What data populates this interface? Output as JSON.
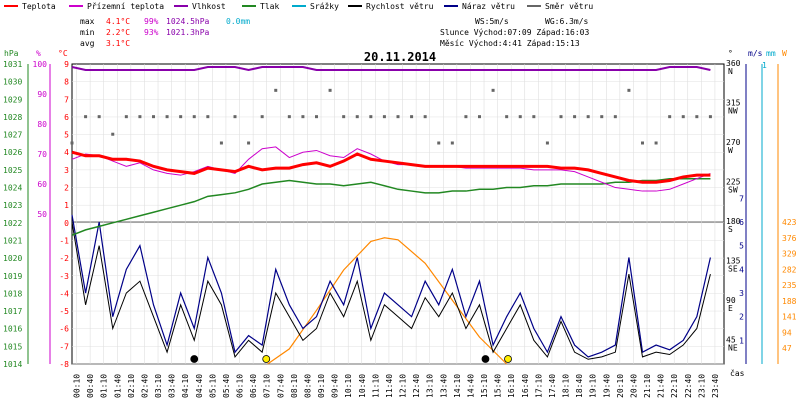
{
  "title": "20.11.2014",
  "legend": [
    {
      "label": "Teplota",
      "color": "#ff0000"
    },
    {
      "label": "Přízemní teplota",
      "color": "#cc00cc"
    },
    {
      "label": "Vlhkost",
      "color": "#8800aa"
    },
    {
      "label": "Tlak",
      "color": "#228822"
    },
    {
      "label": "Srážky",
      "color": "#00aacc"
    },
    {
      "label": "Rychlost větru",
      "color": "#000000"
    },
    {
      "label": "Náraz větru",
      "color": "#000088"
    },
    {
      "label": "Směr větru",
      "color": "#666666"
    }
  ],
  "stats": {
    "max": {
      "label": "max",
      "temp": "4.1°C",
      "hum": "99%",
      "press": "1024.5hPa",
      "rain": "0.0mm"
    },
    "min": {
      "label": "min",
      "temp": "2.2°C",
      "hum": "93%",
      "press": "1021.3hPa"
    },
    "avg": {
      "label": "avg",
      "temp": "3.1°C"
    }
  },
  "info": {
    "ws": "WS:5m/s",
    "wg": "WG:6.3m/s",
    "sun": "Slunce Východ:07:09  Západ:16:03",
    "moon": "Měsíc  Východ:4:41   Západ:15:13"
  },
  "axes": {
    "left_units": [
      "hPa",
      "%",
      "°C"
    ],
    "right_units": [
      "°",
      "m/s",
      "mm",
      "W"
    ],
    "xlabel": "čas",
    "pressure_ticks": [
      "1031",
      "1030",
      "1029",
      "1028",
      "1027",
      "1026",
      "1025",
      "1024",
      "1023",
      "1022",
      "1021",
      "1020",
      "1019",
      "1018",
      "1017",
      "1016",
      "1015",
      "1014"
    ],
    "humidity_ticks": [
      "100",
      "90",
      "80",
      "70",
      "60",
      "50"
    ],
    "temp_ticks": [
      "9",
      "8",
      "7",
      "6",
      "5",
      "4",
      "3",
      "2",
      "1",
      "0",
      "-1",
      "-2",
      "-3",
      "-4",
      "-5",
      "-6",
      "-7",
      "-8"
    ],
    "direction_ticks": [
      {
        "deg": "360",
        "dir": "N"
      },
      {
        "deg": "315",
        "dir": "NW"
      },
      {
        "deg": "270",
        "dir": "W"
      },
      {
        "deg": "225",
        "dir": "SW"
      },
      {
        "deg": "180",
        "dir": "S"
      },
      {
        "deg": "135",
        "dir": "SE"
      },
      {
        "deg": "90",
        "dir": "E"
      },
      {
        "deg": "45",
        "dir": "NE"
      }
    ],
    "wind_ticks": [
      "7",
      "6",
      "5",
      "4",
      "3",
      "2",
      "1"
    ],
    "rain_ticks": [
      "1"
    ],
    "solar_ticks": [
      "423",
      "376",
      "329",
      "282",
      "235",
      "188",
      "141",
      "94",
      "47"
    ],
    "time_ticks": [
      "00:10",
      "00:40",
      "01:10",
      "01:40",
      "02:10",
      "02:40",
      "03:10",
      "03:40",
      "04:10",
      "04:40",
      "05:10",
      "05:40",
      "06:10",
      "06:40",
      "07:10",
      "07:40",
      "08:10",
      "08:40",
      "09:10",
      "09:40",
      "10:10",
      "10:40",
      "11:10",
      "11:40",
      "12:10",
      "12:40",
      "13:10",
      "13:40",
      "14:10",
      "14:40",
      "15:10",
      "15:40",
      "16:10",
      "16:40",
      "17:10",
      "17:40",
      "18:10",
      "18:40",
      "19:10",
      "19:40",
      "20:10",
      "20:40",
      "21:10",
      "21:40",
      "22:10",
      "22:40",
      "23:10",
      "23:40"
    ]
  },
  "chart_data": {
    "type": "line",
    "x_unit": "hour",
    "temperature": [
      [
        0,
        4.0
      ],
      [
        1,
        3.8
      ],
      [
        2,
        3.8
      ],
      [
        3,
        3.6
      ],
      [
        4,
        3.6
      ],
      [
        5,
        3.5
      ],
      [
        6,
        3.2
      ],
      [
        7,
        3.0
      ],
      [
        8,
        2.9
      ],
      [
        9,
        2.8
      ],
      [
        10,
        3.1
      ],
      [
        11,
        3.0
      ],
      [
        12,
        2.9
      ],
      [
        13,
        3.2
      ],
      [
        14,
        3.0
      ],
      [
        15,
        3.1
      ],
      [
        16,
        3.1
      ],
      [
        17,
        3.3
      ],
      [
        18,
        3.4
      ],
      [
        19,
        3.2
      ],
      [
        20,
        3.5
      ],
      [
        21,
        3.9
      ],
      [
        22,
        3.6
      ],
      [
        23,
        3.5
      ],
      [
        24,
        3.4
      ],
      [
        25,
        3.3
      ],
      [
        26,
        3.2
      ],
      [
        27,
        3.2
      ],
      [
        28,
        3.2
      ],
      [
        29,
        3.2
      ],
      [
        30,
        3.2
      ],
      [
        31,
        3.2
      ],
      [
        32,
        3.2
      ],
      [
        33,
        3.2
      ],
      [
        34,
        3.2
      ],
      [
        35,
        3.2
      ],
      [
        36,
        3.1
      ],
      [
        37,
        3.1
      ],
      [
        38,
        3.0
      ],
      [
        39,
        2.8
      ],
      [
        40,
        2.6
      ],
      [
        41,
        2.4
      ],
      [
        42,
        2.3
      ],
      [
        43,
        2.3
      ],
      [
        44,
        2.4
      ],
      [
        45,
        2.6
      ],
      [
        46,
        2.7
      ],
      [
        47,
        2.7
      ]
    ],
    "ground_temperature": [
      [
        0,
        3.6
      ],
      [
        1,
        3.9
      ],
      [
        2,
        3.8
      ],
      [
        3,
        3.5
      ],
      [
        4,
        3.2
      ],
      [
        5,
        3.4
      ],
      [
        6,
        3.0
      ],
      [
        7,
        2.8
      ],
      [
        8,
        2.7
      ],
      [
        9,
        2.9
      ],
      [
        10,
        3.2
      ],
      [
        11,
        3.0
      ],
      [
        12,
        2.8
      ],
      [
        13,
        3.6
      ],
      [
        14,
        4.2
      ],
      [
        15,
        4.3
      ],
      [
        16,
        3.7
      ],
      [
        17,
        4.0
      ],
      [
        18,
        4.1
      ],
      [
        19,
        3.8
      ],
      [
        20,
        3.7
      ],
      [
        21,
        4.2
      ],
      [
        22,
        3.9
      ],
      [
        23,
        3.5
      ],
      [
        24,
        3.3
      ],
      [
        25,
        3.3
      ],
      [
        26,
        3.2
      ],
      [
        27,
        3.2
      ],
      [
        28,
        3.2
      ],
      [
        29,
        3.1
      ],
      [
        30,
        3.1
      ],
      [
        31,
        3.1
      ],
      [
        32,
        3.1
      ],
      [
        33,
        3.1
      ],
      [
        34,
        3.0
      ],
      [
        35,
        3.0
      ],
      [
        36,
        3.0
      ],
      [
        37,
        2.9
      ],
      [
        38,
        2.6
      ],
      [
        39,
        2.3
      ],
      [
        40,
        2.0
      ],
      [
        41,
        1.9
      ],
      [
        42,
        1.8
      ],
      [
        43,
        1.8
      ],
      [
        44,
        1.9
      ],
      [
        45,
        2.2
      ],
      [
        46,
        2.5
      ],
      [
        47,
        2.8
      ]
    ],
    "humidity": [
      [
        0,
        99
      ],
      [
        1,
        98
      ],
      [
        2,
        98
      ],
      [
        3,
        98
      ],
      [
        4,
        98
      ],
      [
        5,
        98
      ],
      [
        6,
        98
      ],
      [
        7,
        98
      ],
      [
        8,
        98
      ],
      [
        9,
        98
      ],
      [
        10,
        99
      ],
      [
        11,
        99
      ],
      [
        12,
        99
      ],
      [
        13,
        98
      ],
      [
        14,
        99
      ],
      [
        15,
        99
      ],
      [
        16,
        99
      ],
      [
        17,
        99
      ],
      [
        18,
        98
      ],
      [
        19,
        98
      ],
      [
        20,
        98
      ],
      [
        21,
        98
      ],
      [
        22,
        98
      ],
      [
        23,
        98
      ],
      [
        24,
        98
      ],
      [
        25,
        98
      ],
      [
        26,
        98
      ],
      [
        27,
        98
      ],
      [
        28,
        98
      ],
      [
        29,
        98
      ],
      [
        30,
        98
      ],
      [
        31,
        98
      ],
      [
        32,
        98
      ],
      [
        33,
        98
      ],
      [
        34,
        98
      ],
      [
        35,
        98
      ],
      [
        36,
        98
      ],
      [
        37,
        98
      ],
      [
        38,
        98
      ],
      [
        39,
        98
      ],
      [
        40,
        98
      ],
      [
        41,
        98
      ],
      [
        42,
        98
      ],
      [
        43,
        98
      ],
      [
        44,
        99
      ],
      [
        45,
        99
      ],
      [
        46,
        99
      ],
      [
        47,
        98
      ]
    ],
    "pressure": [
      [
        0,
        1021.3
      ],
      [
        1,
        1021.6
      ],
      [
        2,
        1021.8
      ],
      [
        3,
        1022.0
      ],
      [
        4,
        1022.2
      ],
      [
        5,
        1022.4
      ],
      [
        6,
        1022.6
      ],
      [
        7,
        1022.8
      ],
      [
        8,
        1023.0
      ],
      [
        9,
        1023.2
      ],
      [
        10,
        1023.5
      ],
      [
        11,
        1023.6
      ],
      [
        12,
        1023.7
      ],
      [
        13,
        1023.9
      ],
      [
        14,
        1024.2
      ],
      [
        15,
        1024.3
      ],
      [
        16,
        1024.4
      ],
      [
        17,
        1024.3
      ],
      [
        18,
        1024.2
      ],
      [
        19,
        1024.2
      ],
      [
        20,
        1024.1
      ],
      [
        21,
        1024.2
      ],
      [
        22,
        1024.3
      ],
      [
        23,
        1024.1
      ],
      [
        24,
        1023.9
      ],
      [
        25,
        1023.8
      ],
      [
        26,
        1023.7
      ],
      [
        27,
        1023.7
      ],
      [
        28,
        1023.8
      ],
      [
        29,
        1023.8
      ],
      [
        30,
        1023.9
      ],
      [
        31,
        1023.9
      ],
      [
        32,
        1024.0
      ],
      [
        33,
        1024.0
      ],
      [
        34,
        1024.1
      ],
      [
        35,
        1024.1
      ],
      [
        36,
        1024.2
      ],
      [
        37,
        1024.2
      ],
      [
        38,
        1024.2
      ],
      [
        39,
        1024.2
      ],
      [
        40,
        1024.3
      ],
      [
        41,
        1024.3
      ],
      [
        42,
        1024.4
      ],
      [
        43,
        1024.4
      ],
      [
        44,
        1024.5
      ],
      [
        45,
        1024.5
      ],
      [
        46,
        1024.5
      ],
      [
        47,
        1024.5
      ]
    ],
    "wind_speed": [
      [
        0,
        6.0
      ],
      [
        1,
        2.5
      ],
      [
        2,
        5.0
      ],
      [
        3,
        1.5
      ],
      [
        4,
        3.0
      ],
      [
        5,
        3.5
      ],
      [
        6,
        2.0
      ],
      [
        7,
        0.5
      ],
      [
        8,
        2.5
      ],
      [
        9,
        1.0
      ],
      [
        10,
        3.5
      ],
      [
        11,
        2.5
      ],
      [
        12,
        0.3
      ],
      [
        13,
        1.0
      ],
      [
        14,
        0.5
      ],
      [
        15,
        3.0
      ],
      [
        16,
        2.0
      ],
      [
        17,
        1.0
      ],
      [
        18,
        1.5
      ],
      [
        19,
        3.0
      ],
      [
        20,
        2.0
      ],
      [
        21,
        3.5
      ],
      [
        22,
        1.0
      ],
      [
        23,
        2.5
      ],
      [
        24,
        2.0
      ],
      [
        25,
        1.5
      ],
      [
        26,
        2.8
      ],
      [
        27,
        2.0
      ],
      [
        28,
        3.0
      ],
      [
        29,
        1.5
      ],
      [
        30,
        2.5
      ],
      [
        31,
        0.5
      ],
      [
        32,
        1.5
      ],
      [
        33,
        2.5
      ],
      [
        34,
        1.0
      ],
      [
        35,
        0.3
      ],
      [
        36,
        1.8
      ],
      [
        37,
        0.5
      ],
      [
        38,
        0.2
      ],
      [
        39,
        0.3
      ],
      [
        40,
        0.5
      ],
      [
        41,
        3.8
      ],
      [
        42,
        0.3
      ],
      [
        43,
        0.5
      ],
      [
        44,
        0.4
      ],
      [
        45,
        0.8
      ],
      [
        46,
        1.5
      ],
      [
        47,
        3.8
      ]
    ],
    "wind_gust": [
      [
        0,
        6.3
      ],
      [
        1,
        3.0
      ],
      [
        2,
        6.0
      ],
      [
        3,
        2.0
      ],
      [
        4,
        4.0
      ],
      [
        5,
        5.0
      ],
      [
        6,
        2.5
      ],
      [
        7,
        0.8
      ],
      [
        8,
        3.0
      ],
      [
        9,
        1.5
      ],
      [
        10,
        4.5
      ],
      [
        11,
        3.0
      ],
      [
        12,
        0.5
      ],
      [
        13,
        1.2
      ],
      [
        14,
        0.8
      ],
      [
        15,
        4.0
      ],
      [
        16,
        2.5
      ],
      [
        17,
        1.5
      ],
      [
        18,
        2.0
      ],
      [
        19,
        3.5
      ],
      [
        20,
        2.5
      ],
      [
        21,
        4.5
      ],
      [
        22,
        1.5
      ],
      [
        23,
        3.0
      ],
      [
        24,
        2.5
      ],
      [
        25,
        2.0
      ],
      [
        26,
        3.5
      ],
      [
        27,
        2.5
      ],
      [
        28,
        4.0
      ],
      [
        29,
        2.0
      ],
      [
        30,
        3.5
      ],
      [
        31,
        0.8
      ],
      [
        32,
        2.0
      ],
      [
        33,
        3.0
      ],
      [
        34,
        1.5
      ],
      [
        35,
        0.5
      ],
      [
        36,
        2.0
      ],
      [
        37,
        0.8
      ],
      [
        38,
        0.3
      ],
      [
        39,
        0.5
      ],
      [
        40,
        0.8
      ],
      [
        41,
        4.5
      ],
      [
        42,
        0.5
      ],
      [
        43,
        0.8
      ],
      [
        44,
        0.6
      ],
      [
        45,
        1.0
      ],
      [
        46,
        2.0
      ],
      [
        47,
        4.5
      ]
    ],
    "wind_direction": [
      [
        0,
        270
      ],
      [
        1,
        300
      ],
      [
        2,
        300
      ],
      [
        3,
        280
      ],
      [
        4,
        300
      ],
      [
        5,
        300
      ],
      [
        6,
        300
      ],
      [
        7,
        300
      ],
      [
        8,
        300
      ],
      [
        9,
        300
      ],
      [
        10,
        300
      ],
      [
        11,
        270
      ],
      [
        12,
        300
      ],
      [
        13,
        270
      ],
      [
        14,
        300
      ],
      [
        15,
        330
      ],
      [
        16,
        300
      ],
      [
        17,
        300
      ],
      [
        18,
        300
      ],
      [
        19,
        330
      ],
      [
        20,
        300
      ],
      [
        21,
        300
      ],
      [
        22,
        300
      ],
      [
        23,
        300
      ],
      [
        24,
        300
      ],
      [
        25,
        300
      ],
      [
        26,
        300
      ],
      [
        27,
        270
      ],
      [
        28,
        270
      ],
      [
        29,
        300
      ],
      [
        30,
        300
      ],
      [
        31,
        330
      ],
      [
        32,
        300
      ],
      [
        33,
        300
      ],
      [
        34,
        300
      ],
      [
        35,
        270
      ],
      [
        36,
        300
      ],
      [
        37,
        300
      ],
      [
        38,
        300
      ],
      [
        39,
        300
      ],
      [
        40,
        300
      ],
      [
        41,
        330
      ],
      [
        42,
        270
      ],
      [
        43,
        270
      ],
      [
        44,
        300
      ],
      [
        45,
        300
      ],
      [
        46,
        300
      ],
      [
        47,
        300
      ]
    ],
    "solar_radiation": [
      [
        7.2,
        0
      ],
      [
        8,
        45
      ],
      [
        9,
        160
      ],
      [
        10,
        280
      ],
      [
        11,
        365
      ],
      [
        11.5,
        376
      ],
      [
        12,
        370
      ],
      [
        13,
        300
      ],
      [
        14,
        190
      ],
      [
        15,
        80
      ],
      [
        16,
        0
      ]
    ],
    "markers": [
      {
        "time": 4.5,
        "symbol": "moonrise",
        "color": "#000000"
      },
      {
        "time": 7.15,
        "symbol": "sunrise",
        "color": "#ffee00"
      },
      {
        "time": 15.22,
        "symbol": "moonset",
        "color": "#000000"
      },
      {
        "time": 16.05,
        "symbol": "sunset",
        "color": "#ffee00"
      }
    ]
  }
}
